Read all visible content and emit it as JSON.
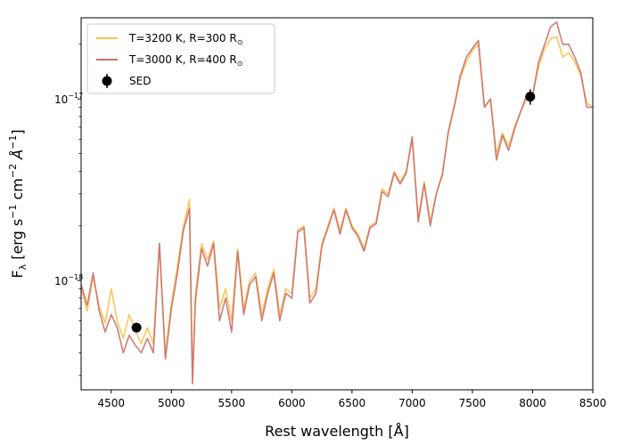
{
  "chart_data": {
    "type": "line",
    "title": "",
    "xlabel": "Rest wavelength [Å]",
    "ylabel": "F_λ [erg s⁻¹ cm⁻² Å⁻¹]",
    "xlim": [
      4250,
      8500
    ],
    "ylim": [
      2.5e-19,
      2.8e-17
    ],
    "yscale": "log",
    "x_ticks": [
      4500,
      5000,
      5500,
      6000,
      6500,
      7000,
      7500,
      8000,
      8500
    ],
    "x_tick_labels": [
      "4500",
      "5000",
      "5500",
      "6000",
      "6500",
      "7000",
      "7500",
      "8000",
      "8500"
    ],
    "y_major_ticks": [
      1e-18,
      1e-17
    ],
    "y_tick_labels": [
      "10",
      "10"
    ],
    "y_tick_exponents": [
      "−18",
      "−17"
    ],
    "legend_position": "upper-left",
    "series": [
      {
        "name": "T=3200 K, R=300 R⊙",
        "legend_label": "T=3200 K, R=300 R",
        "color": "#fbc14e",
        "x": [
          4250,
          4300,
          4350,
          4400,
          4450,
          4500,
          4550,
          4600,
          4650,
          4700,
          4750,
          4800,
          4850,
          4900,
          4950,
          5000,
          5050,
          5100,
          5150,
          5175,
          5200,
          5250,
          5300,
          5350,
          5400,
          5450,
          5500,
          5550,
          5600,
          5650,
          5700,
          5750,
          5800,
          5850,
          5900,
          5950,
          6000,
          6050,
          6100,
          6150,
          6200,
          6250,
          6300,
          6350,
          6400,
          6450,
          6500,
          6550,
          6600,
          6650,
          6700,
          6750,
          6800,
          6850,
          6900,
          6950,
          7000,
          7050,
          7100,
          7150,
          7200,
          7250,
          7300,
          7350,
          7400,
          7450,
          7500,
          7550,
          7600,
          7650,
          7700,
          7750,
          7800,
          7850,
          7900,
          7950,
          8000,
          8050,
          8100,
          8150,
          8200,
          8250,
          8300,
          8350,
          8400,
          8450,
          8500
        ],
        "values": [
          9e-19,
          6.8e-19,
          1.05e-18,
          7.2e-19,
          5.8e-19,
          9e-19,
          6e-19,
          4.8e-19,
          6.5e-19,
          5.3e-19,
          4.5e-19,
          5.5e-19,
          4.5e-19,
          1.6e-18,
          3.9e-19,
          7.5e-19,
          1.2e-18,
          2e-18,
          2.8e-18,
          2.9e-19,
          8.5e-19,
          1.6e-18,
          1.3e-18,
          1.65e-18,
          7e-19,
          9e-19,
          6e-19,
          1.5e-18,
          7e-19,
          1e-18,
          1.1e-18,
          6.5e-19,
          9e-19,
          1.15e-18,
          6.5e-19,
          9e-19,
          8.5e-19,
          1.9e-18,
          2e-18,
          8e-19,
          9e-19,
          1.6e-18,
          2e-18,
          2.5e-18,
          1.9e-18,
          2.5e-18,
          2e-18,
          1.8e-18,
          1.5e-18,
          2e-18,
          2.1e-18,
          3.2e-18,
          3e-18,
          4e-18,
          3.5e-18,
          4e-18,
          6e-18,
          2.2e-18,
          3.5e-18,
          2.1e-18,
          3e-18,
          3.9e-18,
          6.5e-18,
          9e-18,
          1.3e-17,
          1.6e-17,
          1.85e-17,
          2e-17,
          9e-18,
          1e-17,
          5e-18,
          6.5e-18,
          5.5e-18,
          7e-18,
          8.5e-18,
          1e-17,
          1.05e-17,
          1.5e-17,
          1.9e-17,
          2.15e-17,
          2.2e-17,
          1.7e-17,
          1.8e-17,
          1.6e-17,
          1.35e-17,
          9.5e-18,
          9e-18
        ]
      },
      {
        "name": "T=3000 K, R=400 R⊙",
        "legend_label": "T=3000 K, R=400 R",
        "color": "#cd6e6a",
        "x": [
          4250,
          4300,
          4350,
          4400,
          4450,
          4500,
          4550,
          4600,
          4650,
          4700,
          4750,
          4800,
          4850,
          4900,
          4950,
          5000,
          5050,
          5100,
          5150,
          5175,
          5200,
          5250,
          5300,
          5350,
          5400,
          5450,
          5500,
          5550,
          5600,
          5650,
          5700,
          5750,
          5800,
          5850,
          5900,
          5950,
          6000,
          6050,
          6100,
          6150,
          6200,
          6250,
          6300,
          6350,
          6400,
          6450,
          6500,
          6550,
          6600,
          6650,
          6700,
          6750,
          6800,
          6850,
          6900,
          6950,
          7000,
          7050,
          7100,
          7150,
          7200,
          7250,
          7300,
          7350,
          7400,
          7450,
          7500,
          7550,
          7600,
          7650,
          7700,
          7750,
          7800,
          7850,
          7900,
          7950,
          8000,
          8050,
          8100,
          8150,
          8200,
          8250,
          8300,
          8350,
          8400,
          8450,
          8500
        ],
        "values": [
          9.5e-19,
          7.3e-19,
          1.1e-18,
          6.8e-19,
          5.2e-19,
          6.5e-19,
          5.5e-19,
          4e-19,
          5e-19,
          4.4e-19,
          4e-19,
          4.8e-19,
          4e-19,
          1.6e-18,
          3.7e-19,
          7e-19,
          1.1e-18,
          1.9e-18,
          2.5e-18,
          2.7e-19,
          7.8e-19,
          1.5e-18,
          1.2e-18,
          1.6e-18,
          6e-19,
          8e-19,
          5.2e-19,
          1.45e-18,
          6.5e-19,
          9.5e-19,
          1.05e-18,
          6e-19,
          8.5e-19,
          1.1e-18,
          6e-19,
          8.5e-19,
          8e-19,
          1.85e-18,
          1.95e-18,
          7.5e-19,
          8.5e-19,
          1.55e-18,
          1.95e-18,
          2.45e-18,
          1.8e-18,
          2.45e-18,
          1.95e-18,
          1.75e-18,
          1.45e-18,
          1.95e-18,
          2.05e-18,
          3.1e-18,
          2.9e-18,
          3.9e-18,
          3.4e-18,
          3.9e-18,
          6.2e-18,
          2.1e-18,
          3.4e-18,
          2e-18,
          3e-18,
          3.8e-18,
          6.6e-18,
          9.2e-18,
          1.35e-17,
          1.7e-17,
          1.9e-17,
          2.1e-17,
          9e-18,
          1e-17,
          4.6e-18,
          6.3e-18,
          5.2e-18,
          6.8e-18,
          8.5e-18,
          1.05e-17,
          1.05e-17,
          1.6e-17,
          2e-17,
          2.5e-17,
          2.65e-17,
          2e-17,
          2e-17,
          1.7e-17,
          1.4e-17,
          9e-18,
          9e-18
        ]
      }
    ],
    "sed_points": {
      "name": "SED",
      "color": "#000000",
      "x": [
        4710,
        7980
      ],
      "y": [
        5.5e-19,
        1.03e-17
      ],
      "yerr": [
        3e-20,
        1e-18
      ]
    }
  }
}
